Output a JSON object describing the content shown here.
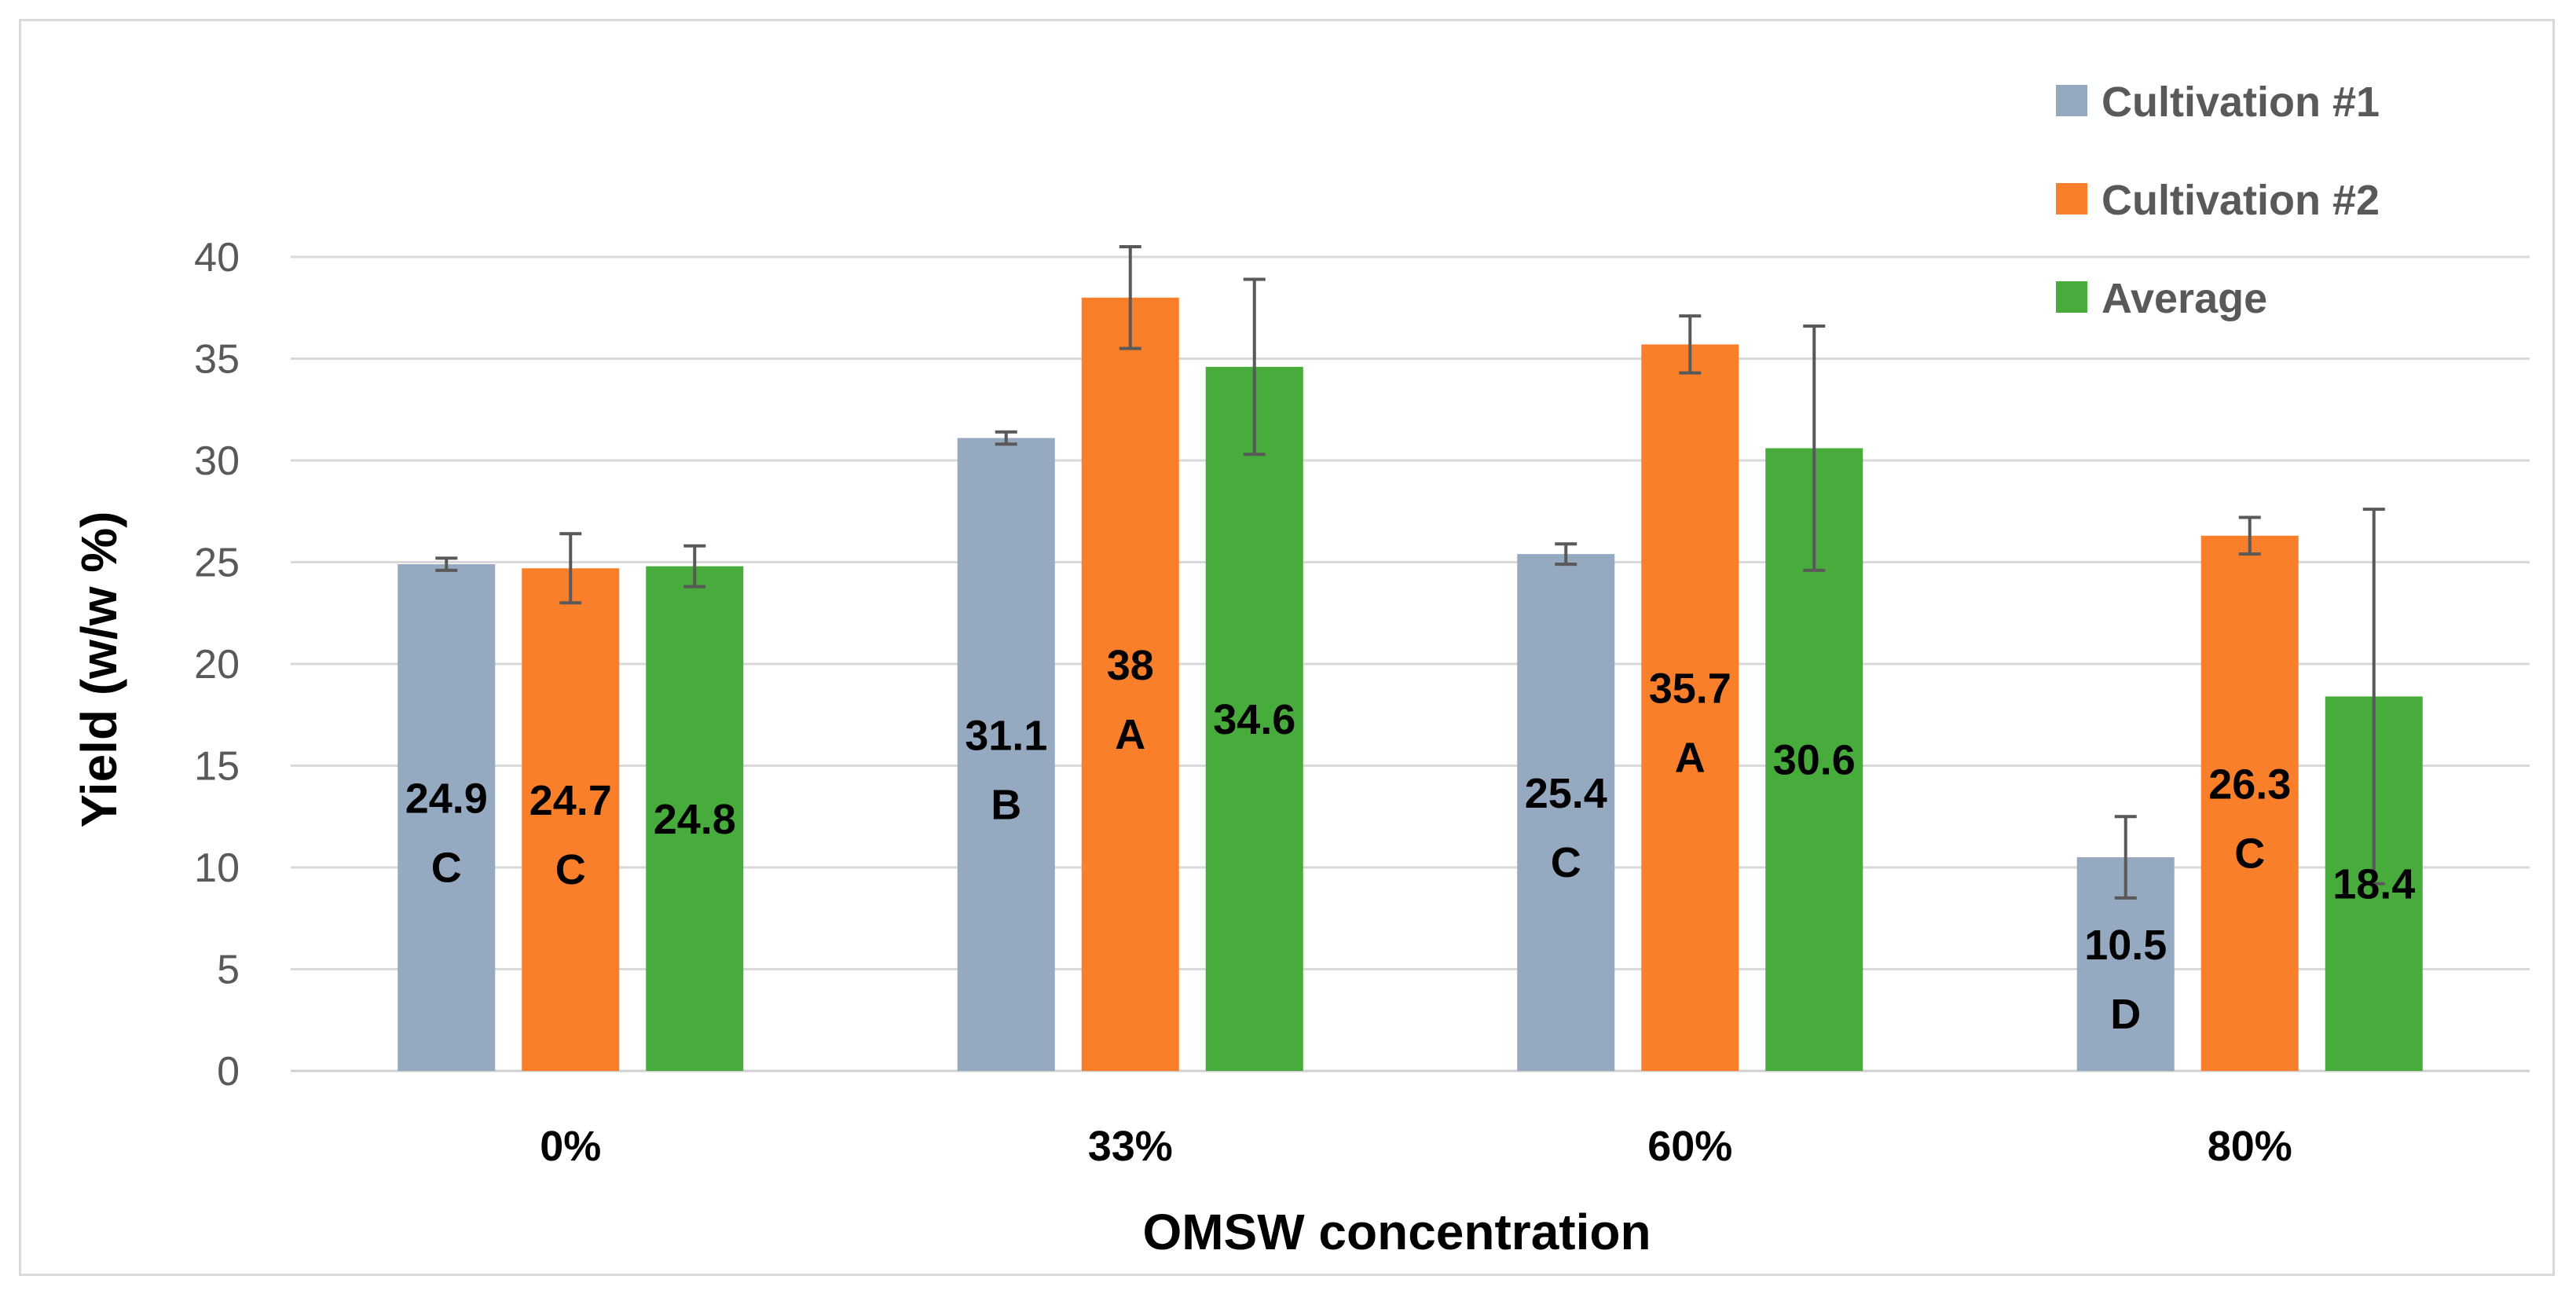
{
  "chart_data": {
    "type": "bar",
    "title": "",
    "xlabel": "OMSW concentration",
    "ylabel": "Yield (w/w %)",
    "ylim": [
      0,
      40
    ],
    "yticks": [
      0,
      5,
      10,
      15,
      20,
      25,
      30,
      35,
      40
    ],
    "grid": true,
    "legend_position": "top-right",
    "categories": [
      "0%",
      "33%",
      "60%",
      "80%"
    ],
    "series": [
      {
        "name": "Cultivation #1",
        "color": "#95a9c0",
        "values": [
          24.9,
          31.1,
          25.4,
          10.5
        ],
        "errors": [
          0.3,
          0.3,
          0.5,
          2.0
        ],
        "value_labels": [
          "24.9",
          "31.1",
          "25.4",
          "10.5"
        ],
        "letters": [
          "C",
          "B",
          "C",
          "D"
        ]
      },
      {
        "name": "Cultivation #2",
        "color": "#fa7f2a",
        "values": [
          24.7,
          38.0,
          35.7,
          26.3
        ],
        "errors": [
          1.7,
          2.5,
          1.4,
          0.9
        ],
        "value_labels": [
          "24.7",
          "38",
          "35.7",
          "26.3"
        ],
        "letters": [
          "C",
          "A",
          "A",
          "C"
        ]
      },
      {
        "name": "Average",
        "color": "#47ac3c",
        "values": [
          24.8,
          34.6,
          30.6,
          18.4
        ],
        "errors": [
          1.0,
          4.3,
          6.0,
          9.2
        ],
        "value_labels": [
          "24.8",
          "34.6",
          "30.6",
          "18.4"
        ],
        "letters": [
          "",
          "",
          "",
          ""
        ]
      }
    ]
  }
}
